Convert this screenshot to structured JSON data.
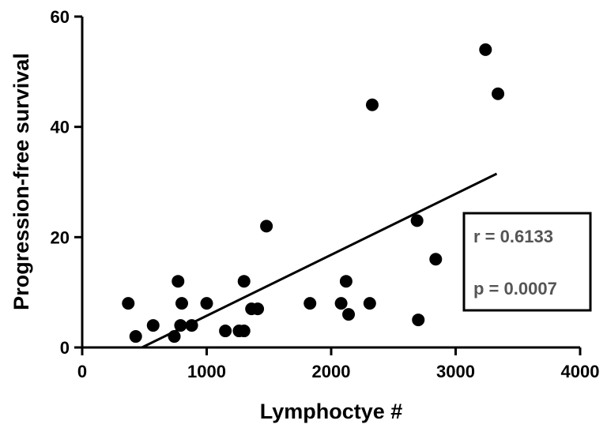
{
  "chart_data": {
    "type": "scatter",
    "title": "",
    "xlabel": "Lymphoctye #",
    "ylabel": "Progression-free survival",
    "xlim": [
      0,
      4000
    ],
    "ylim": [
      0,
      60
    ],
    "xticks": [
      0,
      1000,
      2000,
      3000,
      4000
    ],
    "yticks": [
      0,
      20,
      40,
      60
    ],
    "xtick_labels": [
      "0",
      "1000",
      "2000",
      "3000",
      "4000"
    ],
    "ytick_labels": [
      "0",
      "20",
      "40",
      "60"
    ],
    "grid": false,
    "legend": "none",
    "marker_color": "#000000",
    "points": [
      {
        "x": 370,
        "y": 8
      },
      {
        "x": 430,
        "y": 2
      },
      {
        "x": 570,
        "y": 4
      },
      {
        "x": 740,
        "y": 2
      },
      {
        "x": 770,
        "y": 12
      },
      {
        "x": 790,
        "y": 4
      },
      {
        "x": 800,
        "y": 8
      },
      {
        "x": 880,
        "y": 4
      },
      {
        "x": 1000,
        "y": 8
      },
      {
        "x": 1150,
        "y": 3
      },
      {
        "x": 1260,
        "y": 3
      },
      {
        "x": 1300,
        "y": 3
      },
      {
        "x": 1300,
        "y": 12
      },
      {
        "x": 1360,
        "y": 7
      },
      {
        "x": 1410,
        "y": 7
      },
      {
        "x": 1480,
        "y": 22
      },
      {
        "x": 1830,
        "y": 8
      },
      {
        "x": 2080,
        "y": 8
      },
      {
        "x": 2120,
        "y": 12
      },
      {
        "x": 2140,
        "y": 6
      },
      {
        "x": 2310,
        "y": 8
      },
      {
        "x": 2330,
        "y": 44
      },
      {
        "x": 2690,
        "y": 23
      },
      {
        "x": 2700,
        "y": 5
      },
      {
        "x": 2840,
        "y": 16
      },
      {
        "x": 3240,
        "y": 54
      },
      {
        "x": 3340,
        "y": 46
      }
    ],
    "regression_line": {
      "x1": 480,
      "y1": 0,
      "x2": 3330,
      "y2": 31.5
    },
    "annotation": {
      "r_text": "r = 0.6133",
      "p_text": "p = 0.0007"
    }
  }
}
